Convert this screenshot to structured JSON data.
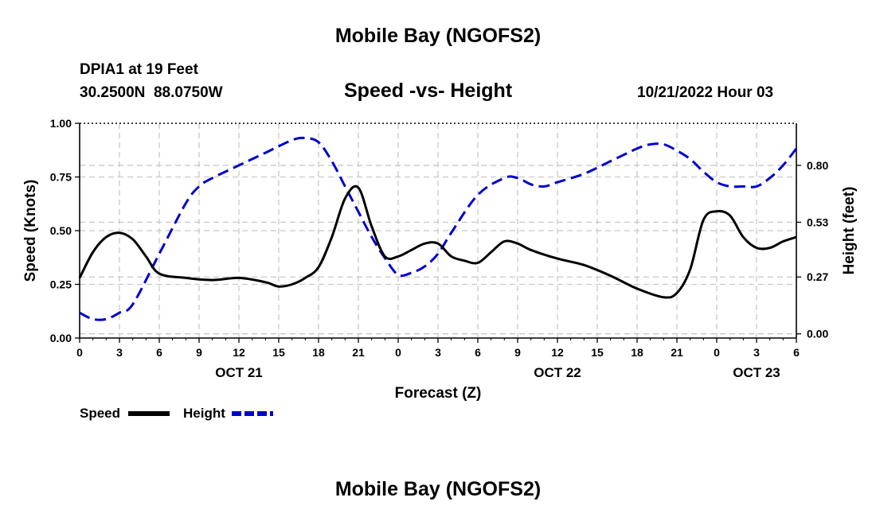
{
  "page": {
    "top_title": "Mobile Bay (NGOFS2)",
    "bottom_title": "Mobile Bay (NGOFS2)",
    "station_line": "DPIA1 at 19 Feet",
    "coords_line": "30.2500N  88.0750W",
    "subtitle": "Speed -vs- Height",
    "datetime": "10/21/2022 Hour 03"
  },
  "chart_data": {
    "type": "line",
    "title": "Speed -vs- Height",
    "xlabel": "Forecast (Z)",
    "ylabel": "Speed (Knots)",
    "ylabel_right": "Height (feet)",
    "x_unit": "hours from 10/21 00Z",
    "xlim": [
      0,
      54
    ],
    "ylim": [
      0,
      1
    ],
    "ylim_right": [
      -0.02,
      1.0
    ],
    "grid": true,
    "legend_position": "bottom-left",
    "x_ticks": [
      0,
      3,
      6,
      9,
      12,
      15,
      18,
      21,
      24,
      27,
      30,
      33,
      36,
      39,
      42,
      45,
      48,
      51,
      54
    ],
    "x_tick_labels": [
      "0",
      "3",
      "6",
      "9",
      "12",
      "15",
      "18",
      "21",
      "0",
      "3",
      "6",
      "9",
      "12",
      "15",
      "18",
      "21",
      "0",
      "3",
      "6"
    ],
    "date_labels": [
      {
        "x": 12,
        "label": "OCT 21"
      },
      {
        "x": 36,
        "label": "OCT 22"
      },
      {
        "x": 51,
        "label": "OCT 23"
      }
    ],
    "y_ticks": [
      0,
      0.25,
      0.5,
      0.75,
      1.0
    ],
    "y_tick_labels": [
      "0.00",
      "0.25",
      "0.50",
      "0.75",
      "1.00"
    ],
    "y_right_ticks": [
      0.0,
      0.27,
      0.53,
      0.8
    ],
    "y_right_tick_labels": [
      "0.00",
      "0.27",
      "0.53",
      "0.80"
    ],
    "series": [
      {
        "name": "Speed",
        "axis": "left",
        "color": "#000000",
        "dash": "solid",
        "x": [
          0,
          1,
          2,
          3,
          4,
          5,
          6,
          8,
          10,
          12,
          14,
          15,
          16,
          17,
          18,
          19,
          20,
          21,
          22,
          23,
          24,
          25,
          26,
          27,
          28,
          29,
          30,
          31,
          32,
          33,
          34,
          36,
          38,
          40,
          42,
          44,
          45,
          46,
          47,
          48,
          49,
          50,
          51,
          52,
          53,
          54
        ],
        "values": [
          0.28,
          0.4,
          0.47,
          0.49,
          0.46,
          0.38,
          0.3,
          0.28,
          0.27,
          0.28,
          0.26,
          0.24,
          0.25,
          0.28,
          0.33,
          0.47,
          0.65,
          0.7,
          0.52,
          0.38,
          0.38,
          0.41,
          0.44,
          0.44,
          0.38,
          0.36,
          0.35,
          0.4,
          0.45,
          0.44,
          0.41,
          0.37,
          0.34,
          0.29,
          0.23,
          0.19,
          0.21,
          0.32,
          0.55,
          0.59,
          0.57,
          0.47,
          0.42,
          0.42,
          0.45,
          0.47
        ]
      },
      {
        "name": "Height",
        "axis": "right",
        "color": "#0000cc",
        "dash": "dashed",
        "x": [
          0,
          1,
          2,
          3,
          4,
          6,
          8,
          9,
          10,
          12,
          14,
          16,
          17,
          18,
          19,
          20,
          21,
          22,
          23,
          24,
          25,
          26,
          27,
          28,
          30,
          32,
          33,
          34,
          35,
          36,
          38,
          40,
          42,
          43,
          44,
          45,
          46,
          47,
          48,
          49,
          50,
          51,
          52,
          53,
          54
        ],
        "values": [
          0.1,
          0.07,
          0.07,
          0.1,
          0.14,
          0.38,
          0.62,
          0.7,
          0.74,
          0.8,
          0.86,
          0.92,
          0.93,
          0.91,
          0.82,
          0.7,
          0.58,
          0.46,
          0.36,
          0.28,
          0.29,
          0.32,
          0.38,
          0.48,
          0.66,
          0.74,
          0.74,
          0.71,
          0.7,
          0.72,
          0.76,
          0.82,
          0.88,
          0.9,
          0.9,
          0.87,
          0.83,
          0.77,
          0.72,
          0.7,
          0.7,
          0.7,
          0.74,
          0.8,
          0.88
        ]
      }
    ],
    "legend": [
      {
        "name": "Speed",
        "color": "#000000",
        "dash": "solid"
      },
      {
        "name": "Height",
        "color": "#0000cc",
        "dash": "dashed"
      }
    ]
  }
}
